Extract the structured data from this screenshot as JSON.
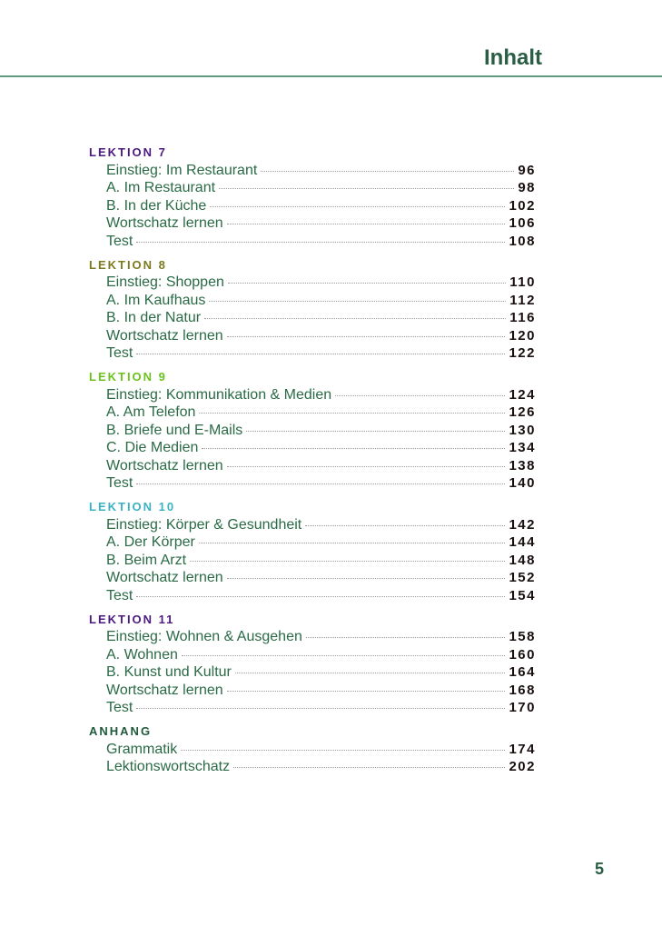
{
  "header": {
    "title": "Inhalt"
  },
  "colors": {
    "accent": "#2a5e44",
    "entry": "#2a6a45",
    "rule": "#5f9a80"
  },
  "sections": [
    {
      "heading": "LEKTION 7",
      "color": "#4b1a7e",
      "entries": [
        {
          "label": "Einstieg: Im Restaurant",
          "page": "96"
        },
        {
          "label": "A. Im Restaurant",
          "page": "98"
        },
        {
          "label": "B. In der Küche",
          "page": "102"
        },
        {
          "label": "Wortschatz lernen",
          "page": "106"
        },
        {
          "label": "Test",
          "page": "108"
        }
      ]
    },
    {
      "heading": "LEKTION 8",
      "color": "#7c7a1e",
      "entries": [
        {
          "label": "Einstieg: Shoppen",
          "page": "110"
        },
        {
          "label": "A. Im Kaufhaus",
          "page": "112"
        },
        {
          "label": "B. In der Natur",
          "page": "116"
        },
        {
          "label": "Wortschatz lernen",
          "page": "120"
        },
        {
          "label": "Test",
          "page": "122"
        }
      ]
    },
    {
      "heading": "LEKTION 9",
      "color": "#6cc21c",
      "entries": [
        {
          "label": "Einstieg: Kommunikation & Medien",
          "page": "124"
        },
        {
          "label": "A. Am Telefon",
          "page": "126"
        },
        {
          "label": "B. Briefe und E-Mails",
          "page": "130"
        },
        {
          "label": "C. Die Medien",
          "page": "134"
        },
        {
          "label": "Wortschatz lernen",
          "page": "138"
        },
        {
          "label": "Test",
          "page": "140"
        }
      ]
    },
    {
      "heading": "LEKTION 10",
      "color": "#3ab2c4",
      "entries": [
        {
          "label": "Einstieg: Körper & Gesundheit",
          "page": "142"
        },
        {
          "label": "A. Der Körper",
          "page": "144"
        },
        {
          "label": "B. Beim Arzt",
          "page": "148"
        },
        {
          "label": "Wortschatz lernen",
          "page": "152"
        },
        {
          "label": "Test",
          "page": "154"
        }
      ]
    },
    {
      "heading": "LEKTION 11",
      "color": "#4b1a7e",
      "entries": [
        {
          "label": "Einstieg: Wohnen & Ausgehen",
          "page": "158"
        },
        {
          "label": "A. Wohnen",
          "page": "160"
        },
        {
          "label": "B. Kunst und Kultur",
          "page": "164"
        },
        {
          "label": "Wortschatz lernen",
          "page": "168"
        },
        {
          "label": "Test",
          "page": "170"
        }
      ]
    },
    {
      "heading": "ANHANG",
      "color": "#1e5a3a",
      "entries": [
        {
          "label": "Grammatik",
          "page": "174"
        },
        {
          "label": "Lektionswortschatz",
          "page": "202"
        }
      ]
    }
  ],
  "footer": {
    "page_number": "5"
  }
}
